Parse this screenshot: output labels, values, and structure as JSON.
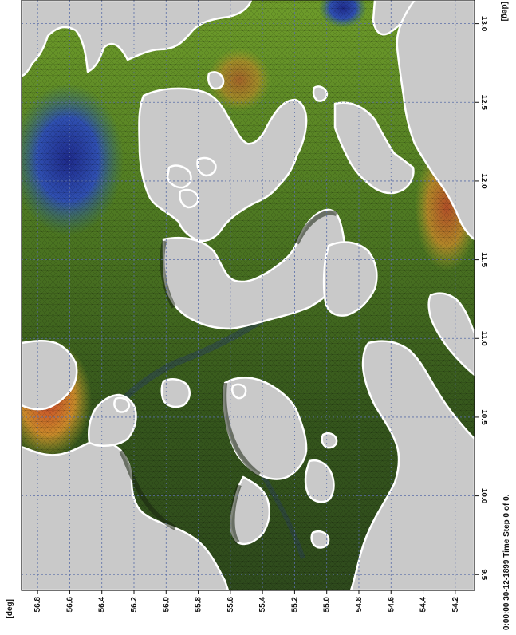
{
  "map": {
    "lon_unit": "[deg]",
    "lat_unit": "[deg]",
    "lon_ticks": [
      "9.5",
      "10.0",
      "10.5",
      "11.0",
      "11.5",
      "12.0",
      "12.5",
      "13.0"
    ],
    "lat_ticks": [
      "56.8",
      "56.6",
      "56.4",
      "56.2",
      "56.0",
      "55.8",
      "55.6",
      "55.4",
      "55.2",
      "55.0",
      "54.8",
      "54.6",
      "54.4",
      "54.2"
    ],
    "lon_range": [
      9.4,
      13.15
    ],
    "lat_range": [
      54.08,
      56.9
    ],
    "status": "0:00:00 30-12-1899  Time Step 0 of 0.",
    "colors": {
      "land": "#c9c9c9",
      "water_dark": "#2e4a1c",
      "water_mid": "#4f7a22",
      "water_light": "#7fa62e",
      "deep": "#2a3a9c",
      "shallow_warm": "#b8782a",
      "shallow_hot": "#c9442a",
      "coast": "#ffffff",
      "grid": "#5a6ea8",
      "axis": "#111111"
    }
  }
}
